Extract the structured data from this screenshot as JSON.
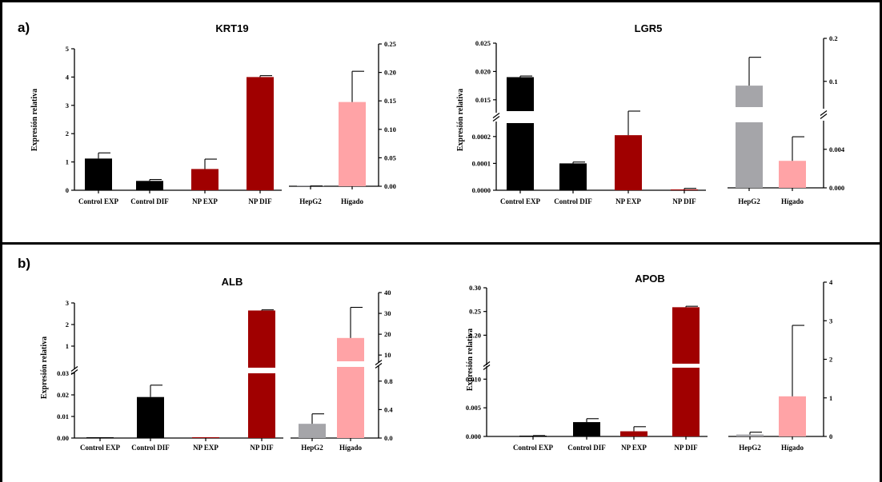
{
  "panels": [
    {
      "letter": "a)"
    },
    {
      "letter": "b)"
    }
  ],
  "colors": {
    "Control EXP": "#000000",
    "Control DIF": "#000000",
    "NP EXP": "#a00000",
    "NP DIF": "#a00000",
    "HepG2": "#a5a5a9",
    "Hígado": "#ffa3a6"
  },
  "chart_data": [
    {
      "type": "bar",
      "title": "KRT19",
      "ylabel": "Expresión relativa",
      "left_axis": {
        "ylim": [
          0,
          5
        ],
        "ticks": [
          "0",
          "1",
          "2",
          "3",
          "4",
          "5"
        ]
      },
      "right_axis": {
        "ylim": [
          0,
          0.25
        ],
        "ticks": [
          "0.00",
          "0.05",
          "0.10",
          "0.15",
          "0.20",
          "0.25"
        ]
      },
      "categories": [
        "Control EXP",
        "Control DIF",
        "NP EXP",
        "NP DIF",
        "HepG2",
        "Hígado"
      ],
      "values": [
        1.12,
        0.33,
        0.75,
        4.0,
        0.0002,
        0.148
      ],
      "errors": [
        0.2,
        0.05,
        0.35,
        0.05,
        0.0003,
        0.054
      ],
      "axis_for_category": [
        "left",
        "left",
        "left",
        "left",
        "right",
        "right"
      ]
    },
    {
      "type": "bar",
      "title": "LGR5",
      "ylabel": "Expresión relativa",
      "left_axis": {
        "broken": true,
        "lower_ylim": [
          0,
          0.00025
        ],
        "lower_ticks": [
          "0.0000",
          "0.0001",
          "0.0002"
        ],
        "upper_ylim": [
          0.013,
          0.025
        ],
        "upper_ticks": [
          "0.015",
          "0.020",
          "0.025"
        ]
      },
      "right_axis": {
        "broken": true,
        "lower_ylim": [
          0,
          0.0068
        ],
        "lower_ticks": [
          "0.000",
          "0.004"
        ],
        "upper_ylim": [
          0.04,
          0.2
        ],
        "upper_ticks": [
          "0.1",
          "0.2"
        ]
      },
      "categories": [
        "Control EXP",
        "Control DIF",
        "NP EXP",
        "NP DIF",
        "HepG2",
        "Hígado"
      ],
      "values": [
        0.019,
        0.0001,
        0.000205,
        3e-06,
        0.09,
        0.0028
      ],
      "errors": [
        0.0002,
        5e-06,
        0.0027,
        4e-06,
        0.066,
        0.0025
      ],
      "axis_for_category": [
        "left",
        "left",
        "left",
        "left",
        "right",
        "right"
      ]
    },
    {
      "type": "bar",
      "title": "ALB",
      "ylabel": "Expresión relativa",
      "left_axis": {
        "broken": true,
        "lower_ylim": [
          0,
          0.03
        ],
        "lower_ticks": [
          "0.00",
          "0.01",
          "0.02",
          "0.03"
        ],
        "upper_ylim": [
          0,
          3
        ],
        "upper_ticks": [
          "1",
          "2",
          "3"
        ]
      },
      "right_axis": {
        "broken": true,
        "lower_ylim": [
          0,
          1.0
        ],
        "lower_ticks": [
          "0.0",
          "0.4",
          "0.8"
        ],
        "upper_ylim": [
          7,
          40
        ],
        "upper_ticks": [
          "10",
          "20",
          "30",
          "40"
        ]
      },
      "categories": [
        "Control EXP",
        "Control DIF",
        "NP EXP",
        "NP DIF",
        "HepG2",
        "Hígado"
      ],
      "values": [
        0,
        0.019,
        0,
        2.65,
        0.2,
        18.2
      ],
      "errors": [
        0,
        0.0055,
        0,
        0.03,
        0.14,
        14.7
      ],
      "axis_for_category": [
        "left",
        "left",
        "left",
        "left",
        "right",
        "right"
      ]
    },
    {
      "type": "bar",
      "title": "APOB",
      "ylabel": "Expresión relativa",
      "left_axis": {
        "broken": true,
        "lower_ylim": [
          0,
          0.012
        ],
        "lower_ticks": [
          "0.000",
          "0.005",
          "0.010"
        ],
        "upper_ylim": [
          0.14,
          0.3
        ],
        "upper_ticks": [
          "0.20",
          "0.25",
          "0.30"
        ]
      },
      "right_axis": {
        "ylim": [
          0,
          4
        ],
        "ticks": [
          "0",
          "1",
          "2",
          "3",
          "4"
        ]
      },
      "categories": [
        "Control EXP",
        "Control DIF",
        "NP EXP",
        "NP DIF",
        "HepG2",
        "Hígado"
      ],
      "values": [
        5e-05,
        0.0025,
        0.0009,
        0.259,
        0.05,
        1.04
      ],
      "errors": [
        0.0001,
        0.0006,
        0.0008,
        0.002,
        0.06,
        1.84
      ],
      "axis_for_category": [
        "left",
        "left",
        "left",
        "left",
        "right",
        "right"
      ]
    }
  ]
}
